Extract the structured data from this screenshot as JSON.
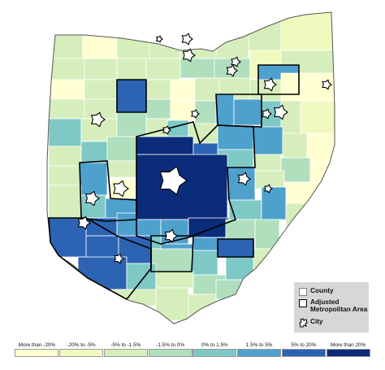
{
  "legend": {
    "bins": [
      {
        "label": "More than -20%",
        "color": "#ffffd2"
      },
      {
        "label": "-20% to -5%",
        "color": "#f1f9bf"
      },
      {
        "label": "-5% to -1.5%",
        "color": "#d6eebb"
      },
      {
        "label": "-1.5% to 0%",
        "color": "#b0dfbd"
      },
      {
        "label": "0% to 1.5%",
        "color": "#7ec8c6"
      },
      {
        "label": "1.5% to 5%",
        "color": "#4fa1cd"
      },
      {
        "label": "5% to 20%",
        "color": "#2c64b3"
      },
      {
        "label": "More than 20%",
        "color": "#0b2c7a"
      }
    ]
  },
  "key": {
    "county_label": "County",
    "metro_label": "Adjusted Metropolitan Area",
    "city_label": "City"
  }
}
